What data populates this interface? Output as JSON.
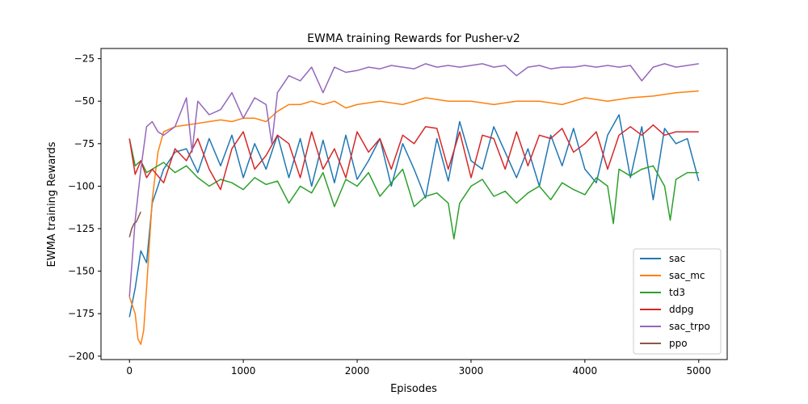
{
  "chart_data": {
    "type": "line",
    "title": "EWMA training Rewards for Pusher-v2",
    "xlabel": "Episodes",
    "ylabel": "EWMA training Rewards",
    "xlim": [
      -250,
      5250
    ],
    "ylim": [
      -202,
      -19
    ],
    "xticks": [
      0,
      1000,
      2000,
      3000,
      4000,
      5000
    ],
    "yticks": [
      -200,
      -175,
      -150,
      -125,
      -100,
      -75,
      -50,
      -25
    ],
    "grid": false,
    "legend_position": "lower-right",
    "series": [
      {
        "name": "sac",
        "color": "#1f77b4",
        "x": [
          0,
          50,
          100,
          150,
          200,
          250,
          300,
          400,
          500,
          600,
          700,
          800,
          900,
          1000,
          1100,
          1200,
          1300,
          1400,
          1500,
          1600,
          1700,
          1800,
          1900,
          2000,
          2100,
          2200,
          2300,
          2400,
          2500,
          2600,
          2700,
          2800,
          2900,
          3000,
          3100,
          3200,
          3300,
          3400,
          3500,
          3600,
          3700,
          3800,
          3900,
          4000,
          4100,
          4200,
          4300,
          4400,
          4500,
          4600,
          4700,
          4800,
          4900,
          5000
        ],
        "y": [
          -177,
          -160,
          -138,
          -145,
          -110,
          -100,
          -90,
          -80,
          -78,
          -92,
          -72,
          -88,
          -70,
          -95,
          -75,
          -90,
          -70,
          -95,
          -72,
          -100,
          -73,
          -98,
          -70,
          -96,
          -85,
          -72,
          -100,
          -75,
          -90,
          -107,
          -72,
          -97,
          -62,
          -85,
          -90,
          -65,
          -80,
          -95,
          -78,
          -100,
          -70,
          -88,
          -66,
          -90,
          -98,
          -70,
          -58,
          -95,
          -65,
          -108,
          -66,
          -75,
          -72,
          -97
        ]
      },
      {
        "name": "sac_mc",
        "color": "#ff7f0e",
        "x": [
          0,
          50,
          75,
          100,
          125,
          150,
          200,
          250,
          300,
          400,
          500,
          600,
          700,
          800,
          900,
          1000,
          1100,
          1200,
          1300,
          1400,
          1500,
          1600,
          1700,
          1800,
          1900,
          2000,
          2200,
          2400,
          2600,
          2800,
          3000,
          3200,
          3400,
          3600,
          3800,
          4000,
          4200,
          4400,
          4600,
          4800,
          5000
        ],
        "y": [
          -165,
          -175,
          -190,
          -193,
          -185,
          -160,
          -108,
          -80,
          -68,
          -65,
          -64,
          -63,
          -62,
          -61,
          -62,
          -60,
          -60,
          -62,
          -56,
          -52,
          -52,
          -50,
          -52,
          -50,
          -54,
          -52,
          -50,
          -52,
          -48,
          -50,
          -50,
          -52,
          -50,
          -50,
          -52,
          -48,
          -50,
          -48,
          -47,
          -45,
          -44
        ]
      },
      {
        "name": "td3",
        "color": "#2ca02c",
        "x": [
          0,
          50,
          100,
          150,
          200,
          300,
          400,
          500,
          600,
          700,
          800,
          900,
          1000,
          1100,
          1200,
          1300,
          1400,
          1500,
          1600,
          1700,
          1800,
          1900,
          2000,
          2100,
          2200,
          2300,
          2400,
          2500,
          2600,
          2700,
          2800,
          2850,
          2900,
          3000,
          3100,
          3200,
          3300,
          3400,
          3500,
          3600,
          3700,
          3800,
          3900,
          4000,
          4100,
          4200,
          4250,
          4300,
          4400,
          4500,
          4600,
          4700,
          4750,
          4800,
          4900,
          5000
        ],
        "y": [
          -72,
          -88,
          -85,
          -92,
          -90,
          -86,
          -92,
          -88,
          -95,
          -100,
          -96,
          -98,
          -102,
          -95,
          -99,
          -97,
          -110,
          -100,
          -104,
          -92,
          -112,
          -96,
          -100,
          -92,
          -106,
          -98,
          -90,
          -112,
          -106,
          -104,
          -110,
          -131,
          -110,
          -100,
          -96,
          -106,
          -103,
          -110,
          -104,
          -100,
          -108,
          -98,
          -102,
          -105,
          -95,
          -100,
          -122,
          -90,
          -94,
          -90,
          -88,
          -100,
          -120,
          -96,
          -92,
          -92
        ]
      },
      {
        "name": "ddpg",
        "color": "#d62728",
        "x": [
          0,
          50,
          100,
          150,
          200,
          300,
          400,
          500,
          600,
          700,
          800,
          900,
          1000,
          1100,
          1200,
          1300,
          1400,
          1500,
          1600,
          1700,
          1800,
          1900,
          2000,
          2100,
          2200,
          2300,
          2400,
          2500,
          2600,
          2700,
          2800,
          2900,
          3000,
          3100,
          3200,
          3300,
          3400,
          3500,
          3600,
          3700,
          3800,
          3900,
          4000,
          4100,
          4200,
          4300,
          4400,
          4500,
          4600,
          4700,
          4800,
          4900,
          5000
        ],
        "y": [
          -72,
          -93,
          -85,
          -95,
          -90,
          -98,
          -78,
          -85,
          -72,
          -90,
          -102,
          -78,
          -68,
          -90,
          -82,
          -70,
          -75,
          -95,
          -68,
          -90,
          -78,
          -95,
          -68,
          -80,
          -72,
          -90,
          -70,
          -75,
          -65,
          -66,
          -90,
          -68,
          -95,
          -70,
          -72,
          -90,
          -68,
          -88,
          -70,
          -72,
          -66,
          -80,
          -75,
          -68,
          -90,
          -70,
          -65,
          -70,
          -64,
          -70,
          -68,
          -68,
          -68
        ]
      },
      {
        "name": "sac_trpo",
        "color": "#9467bd",
        "x": [
          0,
          50,
          100,
          150,
          200,
          250,
          300,
          400,
          500,
          550,
          600,
          700,
          800,
          900,
          1000,
          1100,
          1200,
          1250,
          1300,
          1400,
          1500,
          1600,
          1700,
          1800,
          1900,
          2000,
          2100,
          2200,
          2300,
          2400,
          2500,
          2600,
          2700,
          2800,
          2900,
          3000,
          3100,
          3200,
          3300,
          3400,
          3500,
          3600,
          3700,
          3800,
          3900,
          4000,
          4100,
          4200,
          4300,
          4400,
          4500,
          4600,
          4700,
          4800,
          4900,
          5000
        ],
        "y": [
          -165,
          -120,
          -90,
          -65,
          -62,
          -68,
          -70,
          -65,
          -48,
          -80,
          -50,
          -58,
          -55,
          -45,
          -60,
          -48,
          -52,
          -75,
          -45,
          -35,
          -38,
          -30,
          -45,
          -30,
          -33,
          -32,
          -30,
          -31,
          -29,
          -30,
          -31,
          -28,
          -30,
          -29,
          -30,
          -29,
          -28,
          -30,
          -29,
          -35,
          -30,
          -29,
          -31,
          -30,
          -30,
          -29,
          -30,
          -29,
          -30,
          -29,
          -38,
          -30,
          -28,
          -30,
          -29,
          -28
        ]
      },
      {
        "name": "ppo",
        "color": "#8c564b",
        "x": [
          0,
          20,
          40,
          60,
          80,
          100
        ],
        "y": [
          -130,
          -125,
          -122,
          -121,
          -118,
          -115
        ]
      }
    ]
  }
}
